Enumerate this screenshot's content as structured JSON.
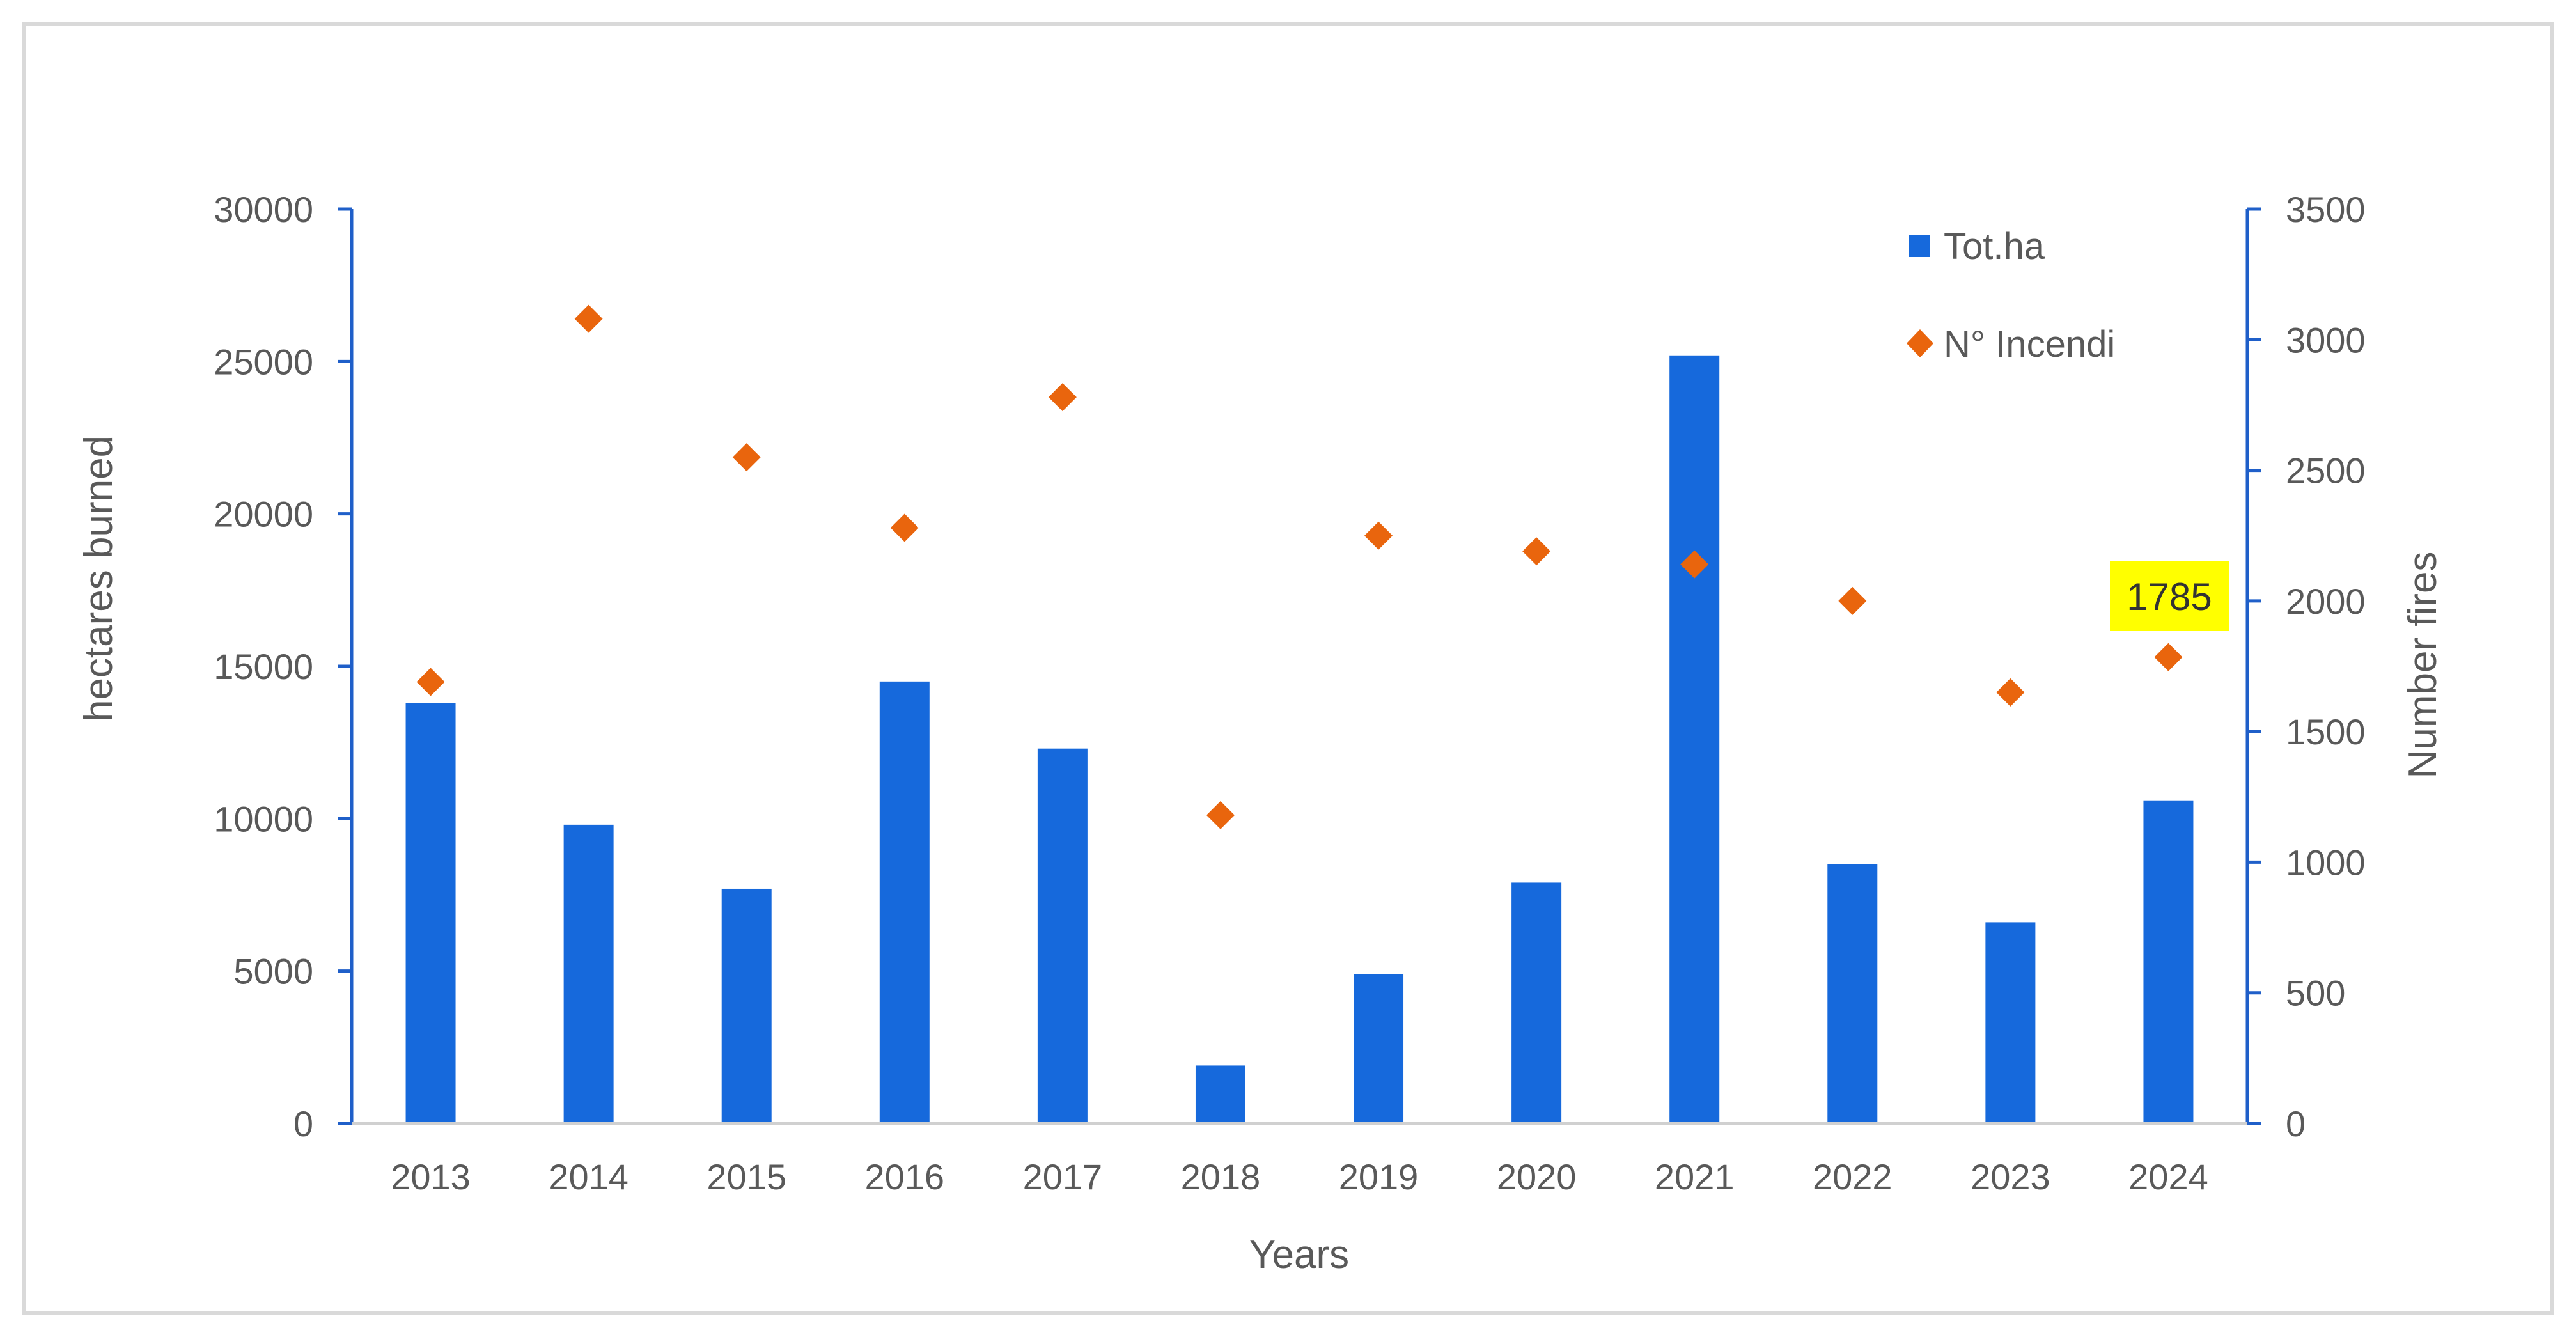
{
  "chart_data": {
    "type": "bar",
    "title": "",
    "xlabel": "Years",
    "ylabel": "hectares burned",
    "y2label": "Number fires",
    "categories": [
      "2013",
      "2014",
      "2015",
      "2016",
      "2017",
      "2018",
      "2019",
      "2020",
      "2021",
      "2022",
      "2023",
      "2024"
    ],
    "ylim": [
      0,
      30000
    ],
    "y2lim": [
      0,
      3500
    ],
    "yticks": [
      "0",
      "5000",
      "10000",
      "15000",
      "20000",
      "25000",
      "30000"
    ],
    "y2ticks": [
      "0",
      "500",
      "1000",
      "1500",
      "2000",
      "2500",
      "3000",
      "3500"
    ],
    "series": [
      {
        "name": "Tot.ha",
        "type": "bar",
        "axis": "left",
        "color": "#1669dc",
        "values": [
          13800,
          9800,
          7700,
          14500,
          12300,
          1900,
          4900,
          7900,
          25200,
          8500,
          6600,
          10600
        ]
      },
      {
        "name": "N° Incendi",
        "type": "scatter",
        "marker": "diamond",
        "axis": "right",
        "color": "#e9650d",
        "values": [
          1690,
          3080,
          2550,
          2280,
          2780,
          1180,
          2250,
          2190,
          2140,
          2000,
          1650,
          1785
        ]
      }
    ],
    "annotation": {
      "text": "1785",
      "category": "2024",
      "highlight": "#ffff00"
    },
    "legend_position": "top-right",
    "grid": false
  }
}
